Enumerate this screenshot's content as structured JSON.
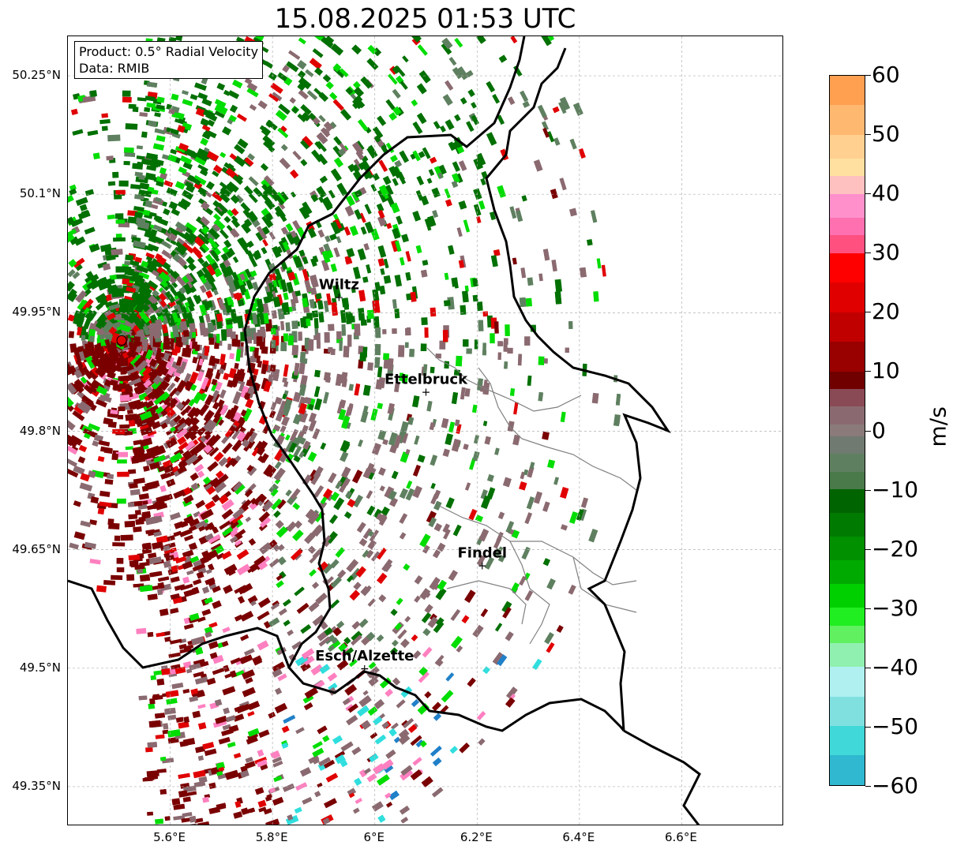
{
  "title": "15.08.2025 01:53 UTC",
  "info": {
    "product": "Product: 0.5° Radial Velocity",
    "data": "Data: RMIB"
  },
  "axes": {
    "x_ticks": [
      "5.6°E",
      "5.8°E",
      "6°E",
      "6.2°E",
      "6.4°E",
      "6.6°E"
    ],
    "y_ticks": [
      "50.25°N",
      "50.1°N",
      "49.95°N",
      "49.8°N",
      "49.65°N",
      "49.5°N",
      "49.35°N"
    ],
    "lon_range": [
      5.4,
      6.8
    ],
    "lat_range": [
      49.3,
      50.3
    ]
  },
  "cities": [
    {
      "name": "Wiltz",
      "lon": 5.93,
      "lat": 49.97
    },
    {
      "name": "Ettelbruck",
      "lon": 6.1,
      "lat": 49.85
    },
    {
      "name": "Findel",
      "lon": 6.21,
      "lat": 49.63
    },
    {
      "name": "Esch/Alzette",
      "lon": 5.98,
      "lat": 49.5
    }
  ],
  "radar_site": {
    "lon": 5.505,
    "lat": 49.915,
    "color": "#e00000"
  },
  "colorbar": {
    "label": "m/s",
    "ticks": [
      "60",
      "50",
      "40",
      "30",
      "20",
      "10",
      "0",
      "−10",
      "−20",
      "−30",
      "−40",
      "−50",
      "−60"
    ],
    "range": [
      -60,
      60
    ],
    "colors": {
      "outbound_far": "#ff9f50",
      "outbound_pink": "#ff80c0",
      "outbound_red": "#e00000",
      "outbound_dark": "#7a0000",
      "near_zero_pos": "#8a6a70",
      "near_zero_neg": "#5f8060",
      "inbound_dark": "#007000",
      "inbound_green": "#00dd00",
      "inbound_cyan": "#30dede",
      "inbound_blue": "#2080c8"
    }
  },
  "colors": {
    "border": "#000000",
    "canton_lines": "#808080",
    "grid": "#b0b0b0"
  }
}
